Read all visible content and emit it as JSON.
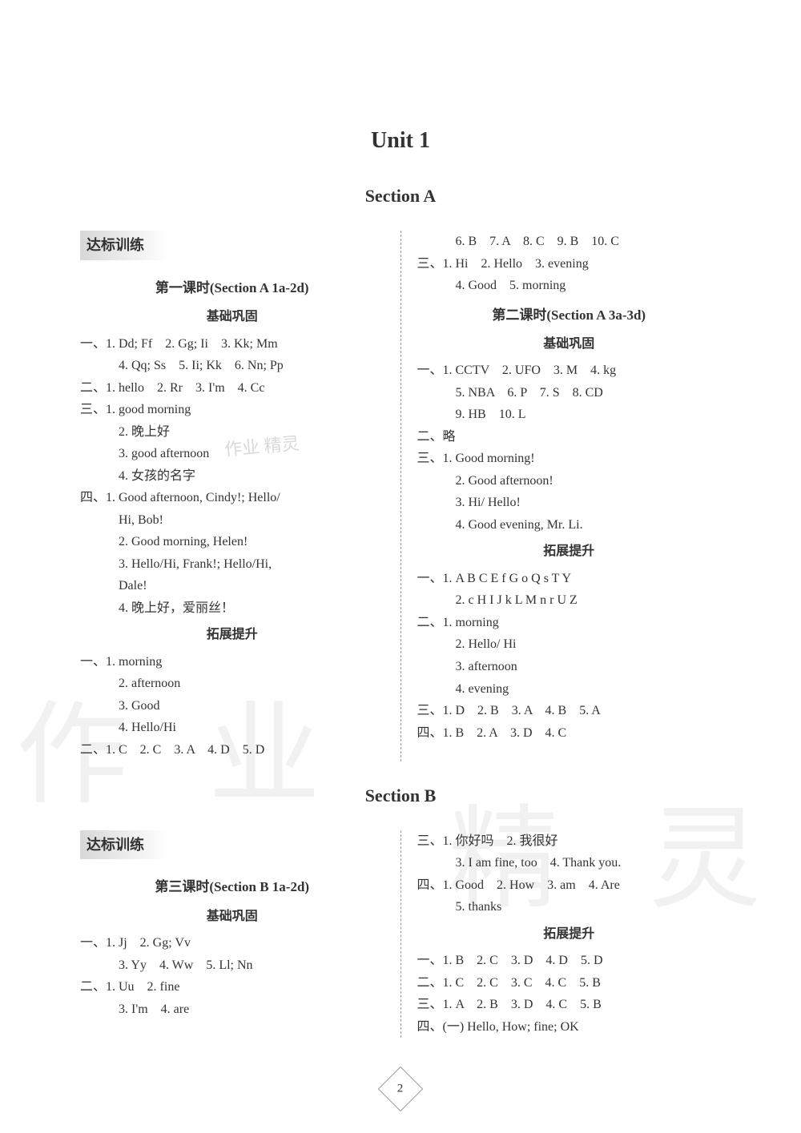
{
  "unit_title": "Unit 1",
  "section_a_title": "Section A",
  "section_b_title": "Section B",
  "training_label": "达标训练",
  "page_number": "2",
  "watermarks": {
    "w1": "作",
    "w2": "业",
    "w3": "精",
    "w4": "灵",
    "small": "作业\n精灵"
  },
  "sectionA": {
    "col1": {
      "lesson1_title": "第一课时(Section A 1a-2d)",
      "basic_title": "基础巩固",
      "lines": [
        "一、1. Dd; Ff　2. Gg; Ii　3. Kk; Mm",
        "4. Qq; Ss　5. Ii; Kk　6. Nn; Pp",
        "二、1. hello　2. Rr　3. I'm　4. Cc",
        "三、1. good morning",
        "2. 晚上好",
        "3. good afternoon",
        "4. 女孩的名字",
        "四、1. Good afternoon, Cindy!; Hello/",
        "Hi, Bob!",
        "2. Good morning, Helen!",
        "3.  Hello/Hi,  Frank!;  Hello/Hi,",
        "Dale!",
        "4. 晚上好，爱丽丝！"
      ],
      "expand_title": "拓展提升",
      "expand_lines": [
        "一、1. morning",
        "2. afternoon",
        "3. Good",
        "4. Hello/Hi",
        "二、1. C　2. C　3. A　4. D　5. D"
      ]
    },
    "col2": {
      "top_lines": [
        "6. B　7. A　8. C　9. B　10. C",
        "三、1. Hi　2. Hello　3. evening",
        "4. Good　5. morning"
      ],
      "lesson2_title": "第二课时(Section A 3a-3d)",
      "basic_title": "基础巩固",
      "basic_lines": [
        "一、1. CCTV　2. UFO　3. M　4. kg",
        "5. NBA　6. P　7. S　8. CD",
        "9. HB　10. L",
        "二、略",
        "三、1. Good morning!",
        "2. Good afternoon!",
        "3. Hi/ Hello!",
        "4. Good evening, Mr. Li."
      ],
      "expand_title": "拓展提升",
      "expand_lines": [
        "一、1. A B C E f G o Q s T Y",
        "2. c H I J k L M n r U Z",
        "二、1. morning",
        "2. Hello/ Hi",
        "3. afternoon",
        "4. evening",
        "三、1. D　2. B　3. A　4. B　5. A",
        "四、1. B　2. A　3. D　4. C"
      ]
    }
  },
  "sectionB": {
    "col1": {
      "lesson3_title": "第三课时(Section B 1a-2d)",
      "basic_title": "基础巩固",
      "lines": [
        "一、1. Jj　2. Gg; Vv",
        "3. Yy　4. Ww　5. Ll; Nn",
        "二、1. Uu　2. fine",
        "3. I'm　4. are"
      ]
    },
    "col2": {
      "lines": [
        "三、1. 你好吗　2. 我很好",
        "3. I am fine, too　4. Thank you.",
        "四、1. Good　2. How　3. am　4. Are",
        "5. thanks"
      ],
      "expand_title": "拓展提升",
      "expand_lines": [
        "一、1. B　2. C　3. D　4. D　5. D",
        "二、1. C　2. C　3. C　4. C　5. B",
        "三、1. A　2. B　3. D　4. C　5. B",
        "四、(一) Hello, How; fine; OK"
      ]
    }
  },
  "colors": {
    "text": "#333333",
    "background": "#ffffff",
    "label_bg_start": "#d8d8d8",
    "watermark": "rgba(200,200,200,0.25)",
    "divider": "#999999"
  }
}
